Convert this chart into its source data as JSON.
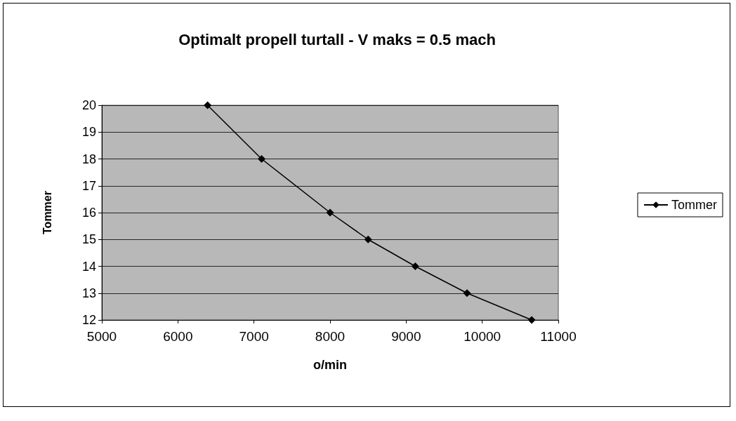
{
  "chart_data": {
    "type": "line",
    "title": "Optimalt propell turtall - V maks = 0.5 mach",
    "xlabel": "o/min",
    "ylabel": "Tommer",
    "x": [
      6390,
      7100,
      8000,
      8500,
      9120,
      9800,
      10650
    ],
    "series": [
      {
        "name": "Tommer",
        "color": "#000000",
        "values": [
          20,
          18,
          16,
          15,
          14,
          13,
          12
        ]
      }
    ],
    "xlim": [
      5000,
      11000
    ],
    "xticks": [
      5000,
      6000,
      7000,
      8000,
      9000,
      10000,
      11000
    ],
    "ylim": [
      12,
      20
    ],
    "yticks": [
      12,
      13,
      14,
      15,
      16,
      17,
      18,
      19,
      20
    ],
    "grid": "y",
    "legend": "right",
    "marker": "diamond",
    "line_style": "solid"
  }
}
